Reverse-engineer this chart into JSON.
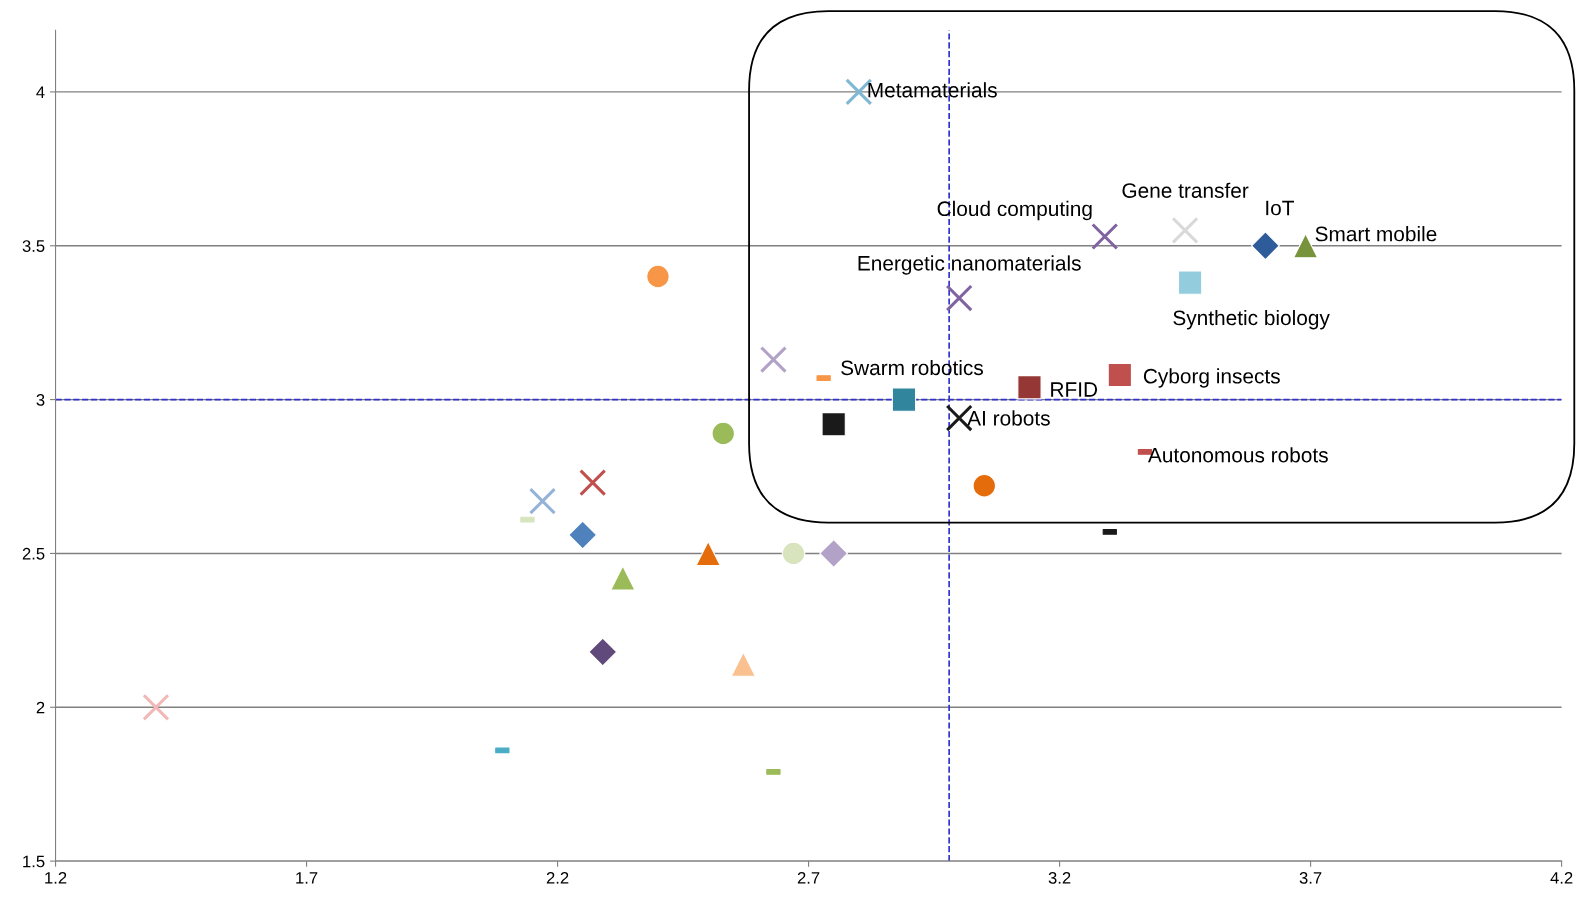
{
  "chart_data": {
    "type": "scatter",
    "xlim": [
      1.2,
      4.2
    ],
    "ylim": [
      1.5,
      4.2
    ],
    "xticks": [
      1.2,
      1.7,
      2.2,
      2.7,
      3.2,
      3.7,
      4.2
    ],
    "yticks": [
      1.5,
      2,
      2.5,
      3,
      3.5,
      4
    ],
    "grid": "y",
    "legend": false,
    "ref_lines": [
      {
        "axis": "x",
        "value": 2.98,
        "color": "#3333cc",
        "line_style": "dashed"
      },
      {
        "axis": "y",
        "value": 3.0,
        "color": "#3333cc",
        "line_style": "dashed"
      }
    ],
    "series": [
      {
        "name": "Metamaterials",
        "color": "#7fb8d4",
        "marker": "cross",
        "x": [
          2.8
        ],
        "values": [
          4.0
        ]
      },
      {
        "name": "Cloud computing",
        "color": "#8064a2",
        "marker": "cross",
        "x": [
          3.29
        ],
        "values": [
          3.53
        ]
      },
      {
        "name": "Gene transfer",
        "color": "#d9d9d9",
        "marker": "cross",
        "x": [
          3.45
        ],
        "values": [
          3.55
        ]
      },
      {
        "name": "IoT",
        "color": "#2e5c9a",
        "marker": "diamond",
        "x": [
          3.61
        ],
        "values": [
          3.5
        ]
      },
      {
        "name": "Smart mobile",
        "color": "#77933c",
        "marker": "triangle",
        "x": [
          3.69
        ],
        "values": [
          3.5
        ]
      },
      {
        "name": "Energetic nanomaterials",
        "color": "#8064a2",
        "marker": "cross",
        "x": [
          3.0
        ],
        "values": [
          3.33
        ]
      },
      {
        "name": "Synthetic biology",
        "color": "#93cddd",
        "marker": "square",
        "x": [
          3.46
        ],
        "values": [
          3.38
        ]
      },
      {
        "name": "Swarm robotics",
        "color": "#31859c",
        "marker": "square",
        "x": [
          2.89
        ],
        "values": [
          3.0
        ]
      },
      {
        "name": "RFID",
        "color": "#953735",
        "marker": "square",
        "x": [
          3.14
        ],
        "values": [
          3.04
        ]
      },
      {
        "name": "Cyborg insects",
        "color": "#c0504d",
        "marker": "square",
        "x": [
          3.32
        ],
        "values": [
          3.08
        ]
      },
      {
        "name": "AI robots",
        "color": "#1a1a1a",
        "marker": "cross",
        "x": [
          3.0
        ],
        "values": [
          2.94
        ]
      },
      {
        "name": "Autonomous robots",
        "color": "#c0504d",
        "x": [
          3.37
        ],
        "values": [
          2.83
        ]
      },
      {
        "color": "#f79646",
        "marker": "circle",
        "x": [
          2.4
        ],
        "values": [
          3.4
        ]
      },
      {
        "color": "#b3a2c7",
        "marker": "cross",
        "x": [
          2.63
        ],
        "values": [
          3.13
        ]
      },
      {
        "color": "#f79646",
        "x": [
          2.73
        ],
        "values": [
          3.07
        ]
      },
      {
        "color": "#1a1a1a",
        "marker": "square",
        "x": [
          2.75
        ],
        "values": [
          2.92
        ]
      },
      {
        "color": "#9bbb59",
        "marker": "circle",
        "x": [
          2.53
        ],
        "values": [
          2.89
        ]
      },
      {
        "color": "#e46c0a",
        "marker": "circle",
        "x": [
          3.05
        ],
        "values": [
          2.72
        ]
      },
      {
        "color": "#1a1a1a",
        "x": [
          3.3
        ],
        "values": [
          2.57
        ]
      },
      {
        "color": "#c0504d",
        "marker": "cross",
        "x": [
          2.27
        ],
        "values": [
          2.73
        ]
      },
      {
        "color": "#95b3d7",
        "marker": "cross",
        "x": [
          2.17
        ],
        "values": [
          2.67
        ]
      },
      {
        "color": "#d7e4bd",
        "x": [
          2.14
        ],
        "values": [
          2.61
        ]
      },
      {
        "color": "#4f81bd",
        "marker": "diamond",
        "x": [
          2.25
        ],
        "values": [
          2.56
        ]
      },
      {
        "color": "#9bbb59",
        "marker": "triangle",
        "x": [
          2.33
        ],
        "values": [
          2.42
        ]
      },
      {
        "color": "#e46c0a",
        "marker": "triangle",
        "x": [
          2.5
        ],
        "values": [
          2.5
        ]
      },
      {
        "color": "#d7e4bd",
        "marker": "circle",
        "x": [
          2.67
        ],
        "values": [
          2.5
        ]
      },
      {
        "color": "#b3a2c7",
        "marker": "diamond",
        "x": [
          2.75
        ],
        "values": [
          2.5
        ]
      },
      {
        "color": "#604a7b",
        "marker": "diamond",
        "x": [
          2.29
        ],
        "values": [
          2.18
        ]
      },
      {
        "color": "#fac090",
        "marker": "triangle",
        "x": [
          2.57
        ],
        "values": [
          2.14
        ]
      },
      {
        "color": "#f2b8b8",
        "marker": "cross",
        "x": [
          1.4
        ],
        "values": [
          2.0
        ]
      },
      {
        "color": "#4bacc6",
        "x": [
          2.09
        ],
        "values": [
          1.86
        ]
      },
      {
        "color": "#9bbb59",
        "x": [
          2.63
        ],
        "values": [
          1.79
        ]
      }
    ]
  }
}
